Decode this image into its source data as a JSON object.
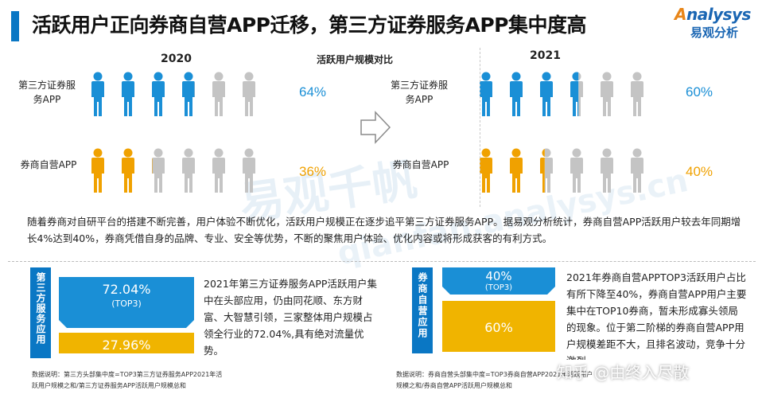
{
  "header": {
    "title": "活跃用户正向券商自营APP迁移，第三方证券服务APP集中度高",
    "logo_en_a": "A",
    "logo_en_rest": "nalysys",
    "logo_cn": "易观分析"
  },
  "comparison": {
    "caption": "活跃用户规模对比",
    "panels": [
      {
        "year": "2020",
        "rows": [
          {
            "label": "第三方证券服务APP",
            "pct": "64%",
            "filled": 0.64
          },
          {
            "label": "券商自营APP",
            "pct": "36%",
            "filled": 0.36
          }
        ]
      },
      {
        "year": "2021",
        "rows": [
          {
            "label": "第三方证券服务APP",
            "pct": "60%",
            "filled": 0.6
          },
          {
            "label": "券商自营APP",
            "pct": "40%",
            "filled": 0.4
          }
        ]
      }
    ],
    "icons_per_row": 6
  },
  "paragraph": "随着券商对自研平台的搭建不断完善，用户体验不断优化，活跃用户规模正在逐步追平第三方证券服务APP。据易观分析统计，券商自营APP活跃用户较去年同期增长4%达到40%，券商凭借自身的品牌、专业、安全等优势，不断的聚焦用户体验、优化内容或将形成获客的有利方式。",
  "left_section": {
    "side_label": "第三方服务应用",
    "top_value": "72.04%",
    "top_sub": "(TOP3)",
    "bottom_value": "27.96%",
    "text": "2021年第三方证券服务APP活跃用户集中在头部应用，仍由同花顺、东方财富、大智慧引领，三家整体用户规模占领全行业的72.04%,具有绝对流量优势。",
    "note": "数据说明：第三方头部集中度=TOP3第三方证券服务APP2021年活跃用户规模之和/第三方证券服务APP活跃用户规模总和"
  },
  "right_section": {
    "side_label": "券商自营应用",
    "top_value": "40%",
    "top_sub": "(TOP3)",
    "bottom_value": "60%",
    "text": "2021年券商自营APPTOP3活跃用户占比有所下降至40%，券商自营APP用户主要集中在TOP10券商，暂未形成寡头领局的现象。位于第二阶梯的券商自营APP用户规模差距不大，且排名波动，竞争十分激烈",
    "note": "数据说明：券商自营头部集中度=TOP3券商自营APP2021年活跃用户规模之和/券商自营APP活跃用户规模总和"
  },
  "watermark": {
    "cn": "易观千帆",
    "url": "qianfan.analysys.cn",
    "zhihu": "知乎 @由终入尽散"
  },
  "colors": {
    "blue": "#1a8fd6",
    "orange": "#f0a100",
    "gray": "#c4c4c4",
    "accent": "#0a77c4"
  }
}
